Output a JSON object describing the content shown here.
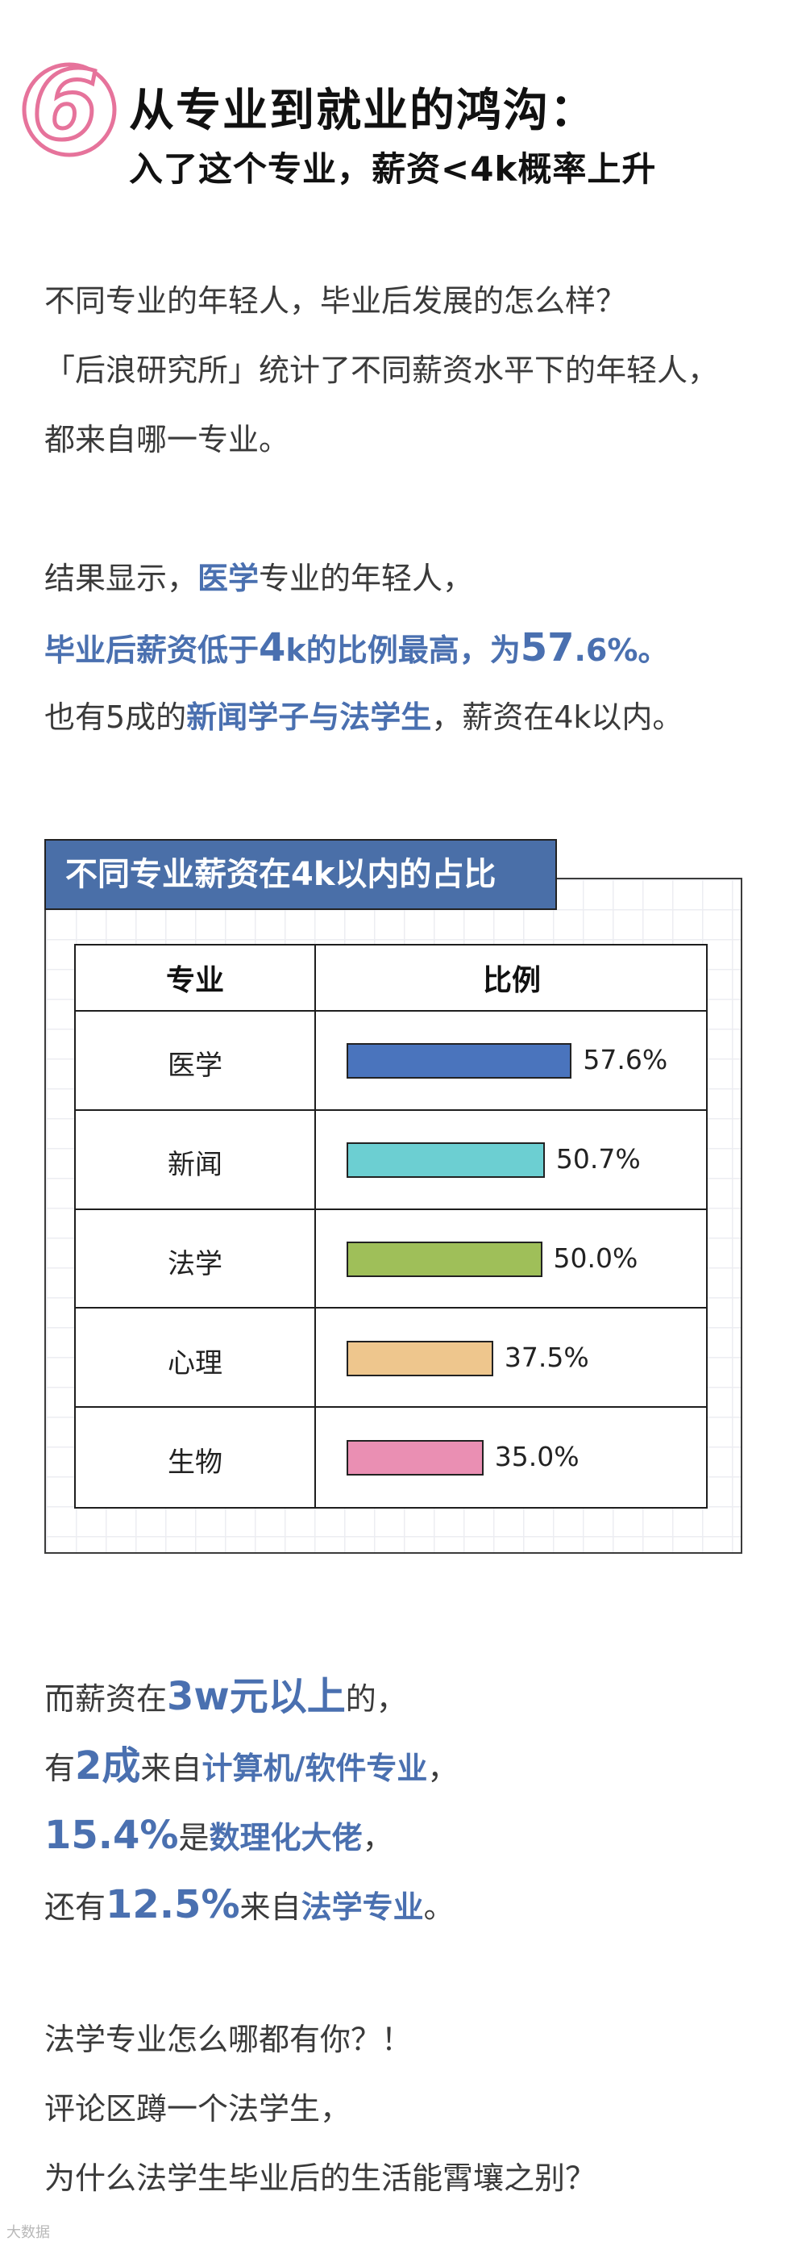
{
  "header": {
    "badge_number": "6",
    "title": "从专业到就业的鸿沟：",
    "subtitle": "入了这个专业，薪资<4k概率上升"
  },
  "intro": {
    "line1": "不同专业的年轻人，毕业后发展的怎么样？",
    "line2": "「后浪研究所」统计了不同薪资水平下的年轻人，",
    "line3": "都来自哪一专业。"
  },
  "result": {
    "l1_a": "结果显示，",
    "l1_b": "医学",
    "l1_c": "专业的年轻人，",
    "l2_a": "毕业后薪资低于",
    "l2_b": "4",
    "l2_c": "k的比例最高，为",
    "l2_d": "57",
    "l2_e": ".6%。",
    "l3_a": "也有5成的",
    "l3_b": "新闻学子与法学生",
    "l3_c": "，薪资在4k以内。"
  },
  "chart_data": {
    "type": "table",
    "title": "不同专业薪资在4k以内的占比",
    "columns": [
      "专业",
      "比例"
    ],
    "categories": [
      "医学",
      "新闻",
      "法学",
      "心理",
      "生物"
    ],
    "values": [
      57.6,
      50.7,
      50.0,
      37.5,
      35.0
    ],
    "value_labels": [
      "57.6%",
      "50.7%",
      "50.0%",
      "37.5%",
      "35.0%"
    ],
    "bar_colors": [
      "#4a74bd",
      "#6ccfd2",
      "#9fbf59",
      "#eec68d",
      "#ea8fb3"
    ],
    "grid": true
  },
  "high_pay": {
    "l1_a": "而薪资在",
    "l1_b": "3w元以上",
    "l1_c": "的，",
    "l2_a": "有",
    "l2_b": "2成",
    "l2_c": "来自",
    "l2_d": "计算机/软件专业",
    "l2_e": "，",
    "l3_a": "15.4%",
    "l3_b": "是",
    "l3_c": "数理化大佬",
    "l3_d": "，",
    "l4_a": "还有",
    "l4_b": "12.5%",
    "l4_c": "来自",
    "l4_d": "法学专业",
    "l4_e": "。"
  },
  "closing": {
    "line1": "法学专业怎么哪都有你？！",
    "line2": "评论区蹲一个法学生，",
    "line3": "为什么法学生毕业后的生活能霄壤之别？"
  },
  "watermark": "大数据"
}
